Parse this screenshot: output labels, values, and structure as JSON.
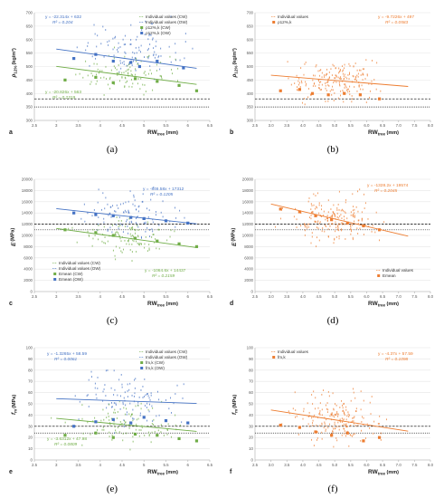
{
  "colors": {
    "blue": "#4472c4",
    "green": "#70ad47",
    "orange": "#ed7d31",
    "black": "#000000"
  },
  "chart_data": [
    {
      "id": "a",
      "type": "scatter",
      "caption": "(a)",
      "panel_letter": "a",
      "ylabel": "ρ",
      "ylabel_sub": "12%",
      "yunit": "(kg/m³)",
      "xlabel": "RW",
      "xlabel_sub": "tree",
      "xunit": "(mm)",
      "xlim": [
        2.5,
        6.5
      ],
      "ylim": [
        300,
        700
      ],
      "xticks": [
        "2.5",
        "3",
        "3.5",
        "4",
        "4.5",
        "5",
        "5.5",
        "6",
        "6.5"
      ],
      "yticks": [
        "300",
        "350",
        "400",
        "450",
        "500",
        "550",
        "600",
        "650",
        "700"
      ],
      "legend": [
        "Individual values (CW)",
        "Individual values (OW)",
        "ρ12%,k (CW)",
        "ρ12%,k (OW)"
      ],
      "trendlines": [
        {
          "series": "OW",
          "color": "#4472c4",
          "equation": "y = -22.314x + 632",
          "r2": "R² = 0.204",
          "x0": 3.0,
          "x1": 6.2
        },
        {
          "series": "CW",
          "color": "#70ad47",
          "equation": "y = -20.826x + 563",
          "r2": "R² = 0.2319",
          "x0": 3.0,
          "x1": 6.2
        }
      ],
      "hlines": [
        {
          "y": 380,
          "style": "dashed",
          "color": "#000000"
        },
        {
          "y": 350,
          "style": "dotted",
          "color": "#000000"
        }
      ],
      "scatter_series": [
        {
          "name": "Individual values (OW)",
          "color": "#4472c4",
          "kind": "small",
          "cx": 4.7,
          "cy": 565,
          "sx": 0.9,
          "sy": 45,
          "n": 110
        },
        {
          "name": "Individual values (CW)",
          "color": "#70ad47",
          "kind": "small",
          "cx": 4.6,
          "cy": 470,
          "sx": 0.9,
          "sy": 35,
          "n": 110
        }
      ],
      "mean_points": [
        {
          "name": "ρ12%,k (OW)",
          "color": "#4472c4",
          "points": [
            [
              3.4,
              530
            ],
            [
              3.9,
              545
            ],
            [
              4.3,
              520
            ],
            [
              4.7,
              515
            ],
            [
              4.9,
              500
            ],
            [
              5.3,
              520
            ],
            [
              5.9,
              495
            ]
          ]
        },
        {
          "name": "ρ12%,k (CW)",
          "color": "#70ad47",
          "points": [
            [
              3.2,
              450
            ],
            [
              3.9,
              460
            ],
            [
              4.3,
              440
            ],
            [
              4.8,
              455
            ],
            [
              5.3,
              445
            ],
            [
              5.8,
              430
            ],
            [
              6.2,
              410
            ]
          ]
        }
      ]
    },
    {
      "id": "b",
      "type": "scatter",
      "caption": "(b)",
      "panel_letter": "b",
      "ylabel": "ρ",
      "ylabel_sub": "12%",
      "yunit": "(kg/m³)",
      "xlabel": "RW",
      "xlabel_sub": "tree",
      "xunit": "(mm)",
      "xlim": [
        2.5,
        8.0
      ],
      "ylim": [
        300,
        700
      ],
      "xticks": [
        "2.5",
        "3.0",
        "3.5",
        "4.0",
        "4.5",
        "5.0",
        "5.5",
        "6.0",
        "6.5",
        "7.0",
        "7.5",
        "8.0"
      ],
      "yticks": [
        "300",
        "350",
        "400",
        "450",
        "500",
        "550",
        "600",
        "650",
        "700"
      ],
      "legend": [
        "Individual values",
        "ρ12%,k"
      ],
      "trendlines": [
        {
          "series": "all",
          "color": "#ed7d31",
          "equation": "y = -9.7226x + 497",
          "r2": "R² = 0.0583",
          "x0": 3.0,
          "x1": 7.3
        }
      ],
      "hlines": [
        {
          "y": 380,
          "style": "dashed",
          "color": "#000000"
        },
        {
          "y": 350,
          "style": "dotted",
          "color": "#000000"
        }
      ],
      "scatter_series": [
        {
          "name": "Individual values",
          "color": "#ed7d31",
          "kind": "small",
          "cx": 5.0,
          "cy": 450,
          "sx": 1.1,
          "sy": 35,
          "n": 200
        }
      ],
      "mean_points": [
        {
          "name": "ρ12%,k",
          "color": "#ed7d31",
          "points": [
            [
              3.3,
              410
            ],
            [
              3.9,
              415
            ],
            [
              4.3,
              400
            ],
            [
              4.8,
              395
            ],
            [
              5.3,
              400
            ],
            [
              5.8,
              395
            ],
            [
              6.4,
              380
            ]
          ]
        }
      ]
    },
    {
      "id": "c",
      "type": "scatter",
      "caption": "(c)",
      "panel_letter": "c",
      "ylabel": "E",
      "ylabel_sub": "",
      "yunit": "(MPa)",
      "xlabel": "RW",
      "xlabel_sub": "tree",
      "xunit": "(mm)",
      "xlim": [
        2.5,
        6.5
      ],
      "ylim": [
        0,
        20000
      ],
      "xticks": [
        "2.5",
        "3",
        "3.5",
        "4",
        "4.5",
        "5",
        "5.5",
        "6",
        "6.5"
      ],
      "yticks": [
        "0",
        "2000",
        "4000",
        "6000",
        "8000",
        "10000",
        "12000",
        "14000",
        "16000",
        "18000",
        "20000"
      ],
      "legend": [
        "Individual values (CW)",
        "Individual values (OW)",
        "Emean (CW)",
        "Emean (OW)"
      ],
      "trendlines": [
        {
          "series": "OW",
          "color": "#4472c4",
          "equation": "y = -846.58x + 17312",
          "r2": "R² = 0.1205",
          "x0": 3.0,
          "x1": 6.2
        },
        {
          "series": "CW",
          "color": "#70ad47",
          "equation": "y = -1064.6x + 14437",
          "r2": "R² = 0.2159",
          "x0": 3.0,
          "x1": 6.2
        }
      ],
      "hlines": [
        {
          "y": 12000,
          "style": "dashed",
          "color": "#000000"
        },
        {
          "y": 11000,
          "style": "dotted",
          "color": "#000000"
        }
      ],
      "scatter_series": [
        {
          "name": "Individual values (OW)",
          "color": "#4472c4",
          "kind": "small",
          "cx": 4.7,
          "cy": 13500,
          "sx": 0.9,
          "sy": 1800,
          "n": 110
        },
        {
          "name": "Individual values (CW)",
          "color": "#70ad47",
          "kind": "small",
          "cx": 4.6,
          "cy": 9500,
          "sx": 0.9,
          "sy": 1600,
          "n": 110
        }
      ],
      "mean_points": [
        {
          "name": "Emean (OW)",
          "color": "#4472c4",
          "points": [
            [
              3.4,
              14000
            ],
            [
              3.9,
              13700
            ],
            [
              4.3,
              13500
            ],
            [
              4.7,
              13200
            ],
            [
              5.0,
              13000
            ],
            [
              5.5,
              12600
            ],
            [
              6.0,
              12200
            ]
          ]
        },
        {
          "name": "Emean (CW)",
          "color": "#70ad47",
          "points": [
            [
              3.2,
              11000
            ],
            [
              3.9,
              10500
            ],
            [
              4.3,
              10000
            ],
            [
              4.8,
              9500
            ],
            [
              5.3,
              9000
            ],
            [
              5.8,
              8500
            ],
            [
              6.2,
              8000
            ]
          ]
        }
      ]
    },
    {
      "id": "d",
      "type": "scatter",
      "caption": "(d)",
      "panel_letter": "d",
      "ylabel": "E",
      "ylabel_sub": "",
      "yunit": "(MPa)",
      "xlabel": "RW",
      "xlabel_sub": "tree",
      "xunit": "(mm)",
      "xlim": [
        2.5,
        8.0
      ],
      "ylim": [
        0,
        20000
      ],
      "xticks": [
        "2.5",
        "3.0",
        "3.5",
        "4.0",
        "4.5",
        "5.0",
        "5.5",
        "6.0",
        "6.5",
        "7.0",
        "7.5",
        "8.0"
      ],
      "yticks": [
        "0",
        "2000",
        "4000",
        "6000",
        "8000",
        "10000",
        "12000",
        "14000",
        "16000",
        "18000",
        "20000"
      ],
      "legend": [
        "Individual values",
        "Emean"
      ],
      "trendlines": [
        {
          "series": "all",
          "color": "#ed7d31",
          "equation": "y = -1328.2x + 19574",
          "r2": "R² = 0.2045",
          "x0": 3.0,
          "x1": 7.3
        }
      ],
      "hlines": [
        {
          "y": 12000,
          "style": "dashed",
          "color": "#000000"
        },
        {
          "y": 11000,
          "style": "dotted",
          "color": "#000000"
        }
      ],
      "scatter_series": [
        {
          "name": "Individual values",
          "color": "#ed7d31",
          "kind": "small",
          "cx": 5.0,
          "cy": 13000,
          "sx": 1.1,
          "sy": 1900,
          "n": 200
        }
      ],
      "mean_points": [
        {
          "name": "Emean",
          "color": "#ed7d31",
          "points": [
            [
              3.3,
              14700
            ],
            [
              3.9,
              14200
            ],
            [
              4.4,
              13500
            ],
            [
              4.9,
              12800
            ],
            [
              5.4,
              12200
            ],
            [
              5.9,
              11700
            ],
            [
              6.4,
              11000
            ]
          ]
        }
      ]
    },
    {
      "id": "e",
      "type": "scatter",
      "caption": "(e)",
      "panel_letter": "e",
      "ylabel": "f",
      "ylabel_sub": "m",
      "yunit": "(MPa)",
      "xlabel": "RW",
      "xlabel_sub": "tree",
      "xunit": "(mm)",
      "xlim": [
        2.5,
        6.5
      ],
      "ylim": [
        0,
        100
      ],
      "xticks": [
        "2.5",
        "3",
        "3.5",
        "4",
        "4.5",
        "5",
        "5.5",
        "6",
        "6.5"
      ],
      "yticks": [
        "0",
        "10",
        "20",
        "30",
        "40",
        "50",
        "60",
        "70",
        "80",
        "90",
        "100"
      ],
      "legend": [
        "Individual values (CW)",
        "Individual values (OW)",
        "fm,k (CW)",
        "fm,k (OW)"
      ],
      "trendlines": [
        {
          "series": "OW",
          "color": "#4472c4",
          "equation": "y = -1.3265x + 58.59",
          "r2": "R² = 0.0061",
          "x0": 3.0,
          "x1": 6.2
        },
        {
          "series": "CW",
          "color": "#70ad47",
          "equation": "y = -3.6312x + 47.98",
          "r2": "R² = 0.0809",
          "x0": 3.0,
          "x1": 6.2
        }
      ],
      "hlines": [
        {
          "y": 30,
          "style": "dashed",
          "color": "#000000"
        },
        {
          "y": 24,
          "style": "dotted",
          "color": "#000000"
        }
      ],
      "scatter_series": [
        {
          "name": "Individual values (OW)",
          "color": "#4472c4",
          "kind": "small",
          "cx": 4.7,
          "cy": 55,
          "sx": 0.9,
          "sy": 11,
          "n": 110
        },
        {
          "name": "Individual values (CW)",
          "color": "#70ad47",
          "kind": "small",
          "cx": 4.6,
          "cy": 32,
          "sx": 0.9,
          "sy": 9,
          "n": 110
        }
      ],
      "mean_points": [
        {
          "name": "fm,k (OW)",
          "color": "#4472c4",
          "points": [
            [
              3.4,
              30
            ],
            [
              3.9,
              34
            ],
            [
              4.3,
              36
            ],
            [
              4.7,
              33
            ],
            [
              5.0,
              38
            ],
            [
              5.5,
              35
            ],
            [
              6.0,
              33
            ]
          ]
        },
        {
          "name": "fm,k (CW)",
          "color": "#70ad47",
          "points": [
            [
              3.2,
              22
            ],
            [
              3.9,
              24
            ],
            [
              4.3,
              20
            ],
            [
              4.8,
              23
            ],
            [
              5.3,
              22
            ],
            [
              5.8,
              19
            ],
            [
              6.2,
              17
            ]
          ]
        }
      ]
    },
    {
      "id": "f",
      "type": "scatter",
      "caption": "(f)",
      "panel_letter": "f",
      "ylabel": "f",
      "ylabel_sub": "m",
      "yunit": "(MPa)",
      "xlabel": "RW",
      "xlabel_sub": "tree",
      "xunit": "(mm)",
      "xlim": [
        2.5,
        8.0
      ],
      "ylim": [
        0,
        100
      ],
      "xticks": [
        "2.5",
        "3.0",
        "3.5",
        "4.0",
        "4.5",
        "5.0",
        "5.5",
        "6.0",
        "6.5",
        "7.0",
        "7.5",
        "8.0"
      ],
      "yticks": [
        "0",
        "10",
        "20",
        "30",
        "40",
        "50",
        "60",
        "70",
        "80",
        "90",
        "100"
      ],
      "legend": [
        "Individual values",
        "fm,k"
      ],
      "trendlines": [
        {
          "series": "all",
          "color": "#ed7d31",
          "equation": "y = -4.37x + 57.59",
          "r2": "R² = 0.1098",
          "x0": 3.0,
          "x1": 7.3
        }
      ],
      "hlines": [
        {
          "y": 30,
          "style": "dashed",
          "color": "#000000"
        },
        {
          "y": 24,
          "style": "dotted",
          "color": "#000000"
        }
      ],
      "scatter_series": [
        {
          "name": "Individual values",
          "color": "#ed7d31",
          "kind": "small",
          "cx": 5.0,
          "cy": 37,
          "sx": 1.1,
          "sy": 10,
          "n": 200
        }
      ],
      "mean_points": [
        {
          "name": "fm,k",
          "color": "#ed7d31",
          "points": [
            [
              3.3,
              31
            ],
            [
              3.9,
              29
            ],
            [
              4.4,
              25
            ],
            [
              4.9,
              22
            ],
            [
              5.4,
              24
            ],
            [
              5.9,
              17
            ],
            [
              6.4,
              20
            ]
          ]
        }
      ]
    }
  ]
}
